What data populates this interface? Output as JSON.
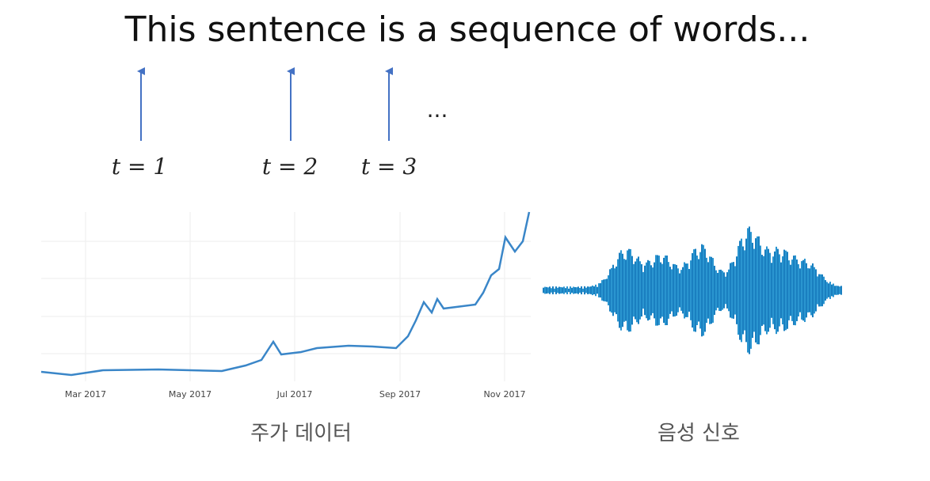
{
  "sentence": "This sentence is a sequence of words...",
  "ellipsis": "...",
  "time_steps": [
    "t = 1",
    "t = 2",
    "t = 3"
  ],
  "stock_chart": {
    "x_labels": [
      "Mar 2017",
      "May 2017",
      "Jul 2017",
      "Sep 2017",
      "Nov 2017"
    ],
    "caption": "주가 데이터"
  },
  "audio": {
    "caption": "음성 신호"
  }
}
